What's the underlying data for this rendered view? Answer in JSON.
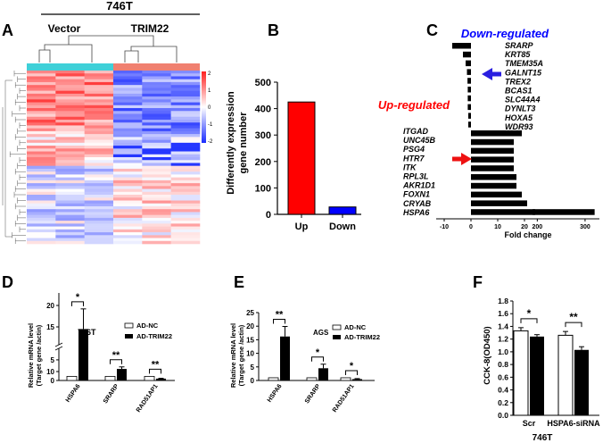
{
  "colors": {
    "heat_high": "#ff2020",
    "heat_low": "#1a2cff",
    "group_vector": "#3fd0d8",
    "group_trim22": "#f08070",
    "up": "#ff0000",
    "down": "#0000ff",
    "arrow_down": "#2a1fe0",
    "arrow_up": "#ee1111",
    "bar_dark": "#000000",
    "bar_light": "#ffffff"
  },
  "panel_a": {
    "letter": "A",
    "cell_line": "746T",
    "group_vector": "Vector",
    "group_trim22": "TRIM22",
    "scale_ticks": [
      "2",
      "1",
      "0",
      "-1",
      "-2"
    ]
  },
  "panel_b": {
    "letter": "B",
    "ylabel_line1": "Differently expression",
    "ylabel_line2": "gene number"
  },
  "panel_c": {
    "letter": "C",
    "down_title": "Down-regulated",
    "up_title": "Up-regulated",
    "xlabel": "Fold change",
    "down_genes": [
      "SRARP",
      "KRT85",
      "TMEM35A",
      "GALNT15",
      "TREX2",
      "BCAS1",
      "SLC44A4",
      "DYNLT3",
      "HOXA5",
      "WDR93"
    ],
    "up_genes": [
      "ITGAD",
      "UNC45B",
      "PSG4",
      "HTR7",
      "ITK",
      "RPL3L",
      "AKR1D1",
      "FOXN1",
      "CRYAB",
      "HSPA6"
    ]
  },
  "panel_d": {
    "letter": "D",
    "cell_line": "746T",
    "ylabel_line1": "Relative mRNA level",
    "ylabel_line2": "(Target gene /actin)",
    "legend_nc": "AD-NC",
    "legend_trim": "AD-TRIM22",
    "sig": [
      "*",
      "**",
      "**"
    ]
  },
  "panel_e": {
    "letter": "E",
    "cell_line": "AGS",
    "ylabel_line1": "Relative mRNA level",
    "ylabel_line2": "(Target gene /actin)",
    "legend_nc": "AD-NC",
    "legend_trim": "AD-TRIM22",
    "sig": [
      "**",
      "*",
      "*"
    ]
  },
  "panel_f": {
    "letter": "F",
    "ylabel": "CCK-8(OD450)",
    "cell_line": "746T",
    "sig": [
      "*",
      "**"
    ]
  },
  "chart_data": [
    {
      "type": "heatmap",
      "panel": "A",
      "title": "746T",
      "columns": [
        "Vector",
        "Vector",
        "Vector",
        "TRIM22",
        "TRIM22",
        "TRIM22"
      ],
      "scale_range": [
        -2,
        2
      ]
    },
    {
      "type": "bar",
      "panel": "B",
      "categories": [
        "Up",
        "Down"
      ],
      "values": [
        425,
        28
      ],
      "ylabel": "Differently expression gene number",
      "ylim": [
        0,
        500
      ],
      "yticks": [
        0,
        100,
        200,
        300,
        400,
        500
      ]
    },
    {
      "type": "bar",
      "panel": "C",
      "orientation": "horizontal",
      "categories": [
        "SRARP",
        "KRT85",
        "TMEM35A",
        "GALNT15",
        "TREX2",
        "BCAS1",
        "SLC44A4",
        "DYNLT3",
        "HOXA5",
        "WDR93",
        "ITGAD",
        "UNC45B",
        "PSG4",
        "HTR7",
        "ITK",
        "RPL3L",
        "AKR1D1",
        "FOXN1",
        "CRYAB",
        "HSPA6"
      ],
      "values": [
        -7,
        -3,
        -2,
        -1.5,
        -1.3,
        -1.2,
        -1.2,
        -1.2,
        -1,
        -1,
        19,
        16,
        16,
        16,
        16,
        17,
        17,
        19,
        21,
        320
      ],
      "xlabel": "Fold change",
      "xticks": [
        -10,
        0,
        10,
        20,
        200,
        300
      ],
      "axis_break": [
        24,
        190
      ]
    },
    {
      "type": "bar",
      "panel": "D",
      "title": "746T",
      "categories": [
        "HSPA6",
        "SRARP",
        "RAD51AP1"
      ],
      "series": [
        {
          "name": "AD-NC",
          "values": [
            1,
            1,
            1
          ],
          "errors": [
            0,
            0,
            0
          ]
        },
        {
          "name": "AD-TRIM22",
          "values": [
            14.5,
            2.8,
            0.45
          ],
          "errors": [
            4.7,
            0.5,
            0.08
          ]
        }
      ],
      "ylabel": "Relative mRNA level (Target gene /actin)",
      "yticks": [
        0,
        5,
        10,
        15,
        20
      ],
      "axis_break": [
        6.5,
        12.5
      ]
    },
    {
      "type": "bar",
      "panel": "E",
      "title": "AGS",
      "categories": [
        "HSPA6",
        "SRARP",
        "RAD51AP1"
      ],
      "series": [
        {
          "name": "AD-NC",
          "values": [
            1,
            1,
            1
          ],
          "errors": [
            0,
            0,
            0
          ]
        },
        {
          "name": "AD-TRIM22",
          "values": [
            16.2,
            4.5,
            0.5
          ],
          "errors": [
            3.7,
            1.5,
            0.2
          ]
        }
      ],
      "ylabel": "Relative mRNA level (Target gene /actin)",
      "ylim": [
        0,
        25
      ],
      "yticks": [
        0,
        5,
        10,
        15,
        20,
        25
      ]
    },
    {
      "type": "bar",
      "panel": "F",
      "categories": [
        "Scr",
        "HSPA6-siRNA"
      ],
      "series": [
        {
          "name": "white",
          "values": [
            1.33,
            1.26
          ],
          "errors": [
            0.05,
            0.06
          ]
        },
        {
          "name": "black",
          "values": [
            1.24,
            1.03
          ],
          "errors": [
            0.03,
            0.05
          ]
        }
      ],
      "ylabel": "CCK-8(OD450)",
      "ylim": [
        0,
        1.8
      ],
      "yticks": [
        0,
        0.2,
        0.4,
        0.6,
        0.8,
        1.0,
        1.2,
        1.4,
        1.6,
        1.8
      ],
      "yticklabels": [
        "0.0",
        "0.2",
        "0.4",
        "0.6",
        "0.8",
        "1.0",
        "1.2",
        "1.4",
        "1.6",
        "1.8"
      ]
    }
  ]
}
